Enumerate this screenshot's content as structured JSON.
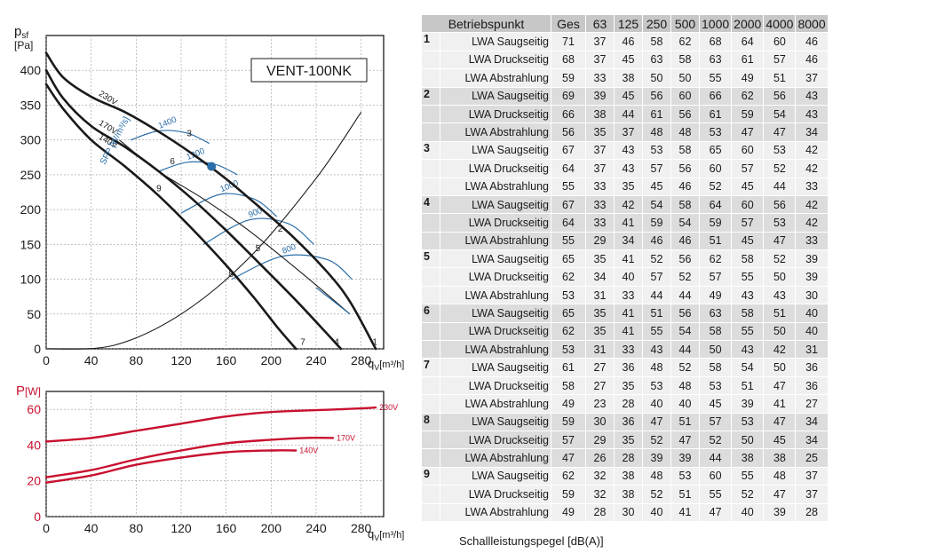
{
  "chart_data": [
    {
      "type": "line",
      "title": "VENT-100NK",
      "ylabel": "psf [Pa]",
      "ylabel_main": "p",
      "ylabel_sub": "sf",
      "ylabel_unit": "[Pa]",
      "xlabel_q": "q",
      "xlabel_sub": "V",
      "xlabel_unit": "[m³/h]",
      "xlim": [
        0,
        300
      ],
      "ylim": [
        0,
        450
      ],
      "xticks": [
        "0",
        "40",
        "80",
        "120",
        "160",
        "200",
        "240",
        "280"
      ],
      "yticks": [
        "0",
        "50",
        "100",
        "150",
        "200",
        "250",
        "300",
        "350",
        "400"
      ],
      "fan_curves": [
        {
          "name": "230V",
          "x": [
            0,
            15,
            40,
            70,
            100,
            130,
            160,
            190,
            220,
            250,
            270,
            293
          ],
          "y": [
            425,
            390,
            362,
            340,
            312,
            280,
            244,
            203,
            160,
            110,
            68,
            0
          ]
        },
        {
          "name": "170V",
          "x": [
            0,
            15,
            40,
            70,
            100,
            130,
            160,
            190,
            220,
            245,
            262
          ],
          "y": [
            400,
            360,
            320,
            290,
            255,
            215,
            170,
            122,
            73,
            30,
            0
          ]
        },
        {
          "name": "140V",
          "x": [
            0,
            15,
            40,
            70,
            100,
            130,
            160,
            185,
            205,
            222
          ],
          "y": [
            380,
            345,
            300,
            262,
            220,
            172,
            120,
            73,
            32,
            0
          ]
        }
      ],
      "system_curves": [
        {
          "x": [
            0,
            60,
            120,
            180,
            240,
            280
          ],
          "y": [
            0,
            5,
            50,
            130,
            245,
            340
          ]
        },
        {
          "x": [
            65,
            100,
            140,
            180,
            230,
            270
          ],
          "y": [
            300,
            255,
            215,
            170,
            105,
            50
          ]
        }
      ],
      "sfp_curves": [
        {
          "label": "1400",
          "x": [
            75,
            100,
            125,
            145
          ],
          "y": [
            300,
            313,
            310,
            295
          ]
        },
        {
          "label": "1200",
          "x": [
            100,
            125,
            150,
            170
          ],
          "y": [
            255,
            268,
            265,
            250
          ]
        },
        {
          "label": "1000",
          "x": [
            120,
            155,
            185,
            205
          ],
          "y": [
            195,
            222,
            215,
            190
          ]
        },
        {
          "label": "900",
          "x": [
            140,
            180,
            215,
            238
          ],
          "y": [
            150,
            185,
            180,
            150
          ]
        },
        {
          "label": "800",
          "x": [
            165,
            210,
            250,
            272
          ],
          "y": [
            100,
            133,
            128,
            100
          ]
        }
      ],
      "sfp_axis_label": "SFP [W/m³/s]",
      "operating_point": {
        "x": 147,
        "y": 262
      },
      "point_labels": [
        {
          "label": "1",
          "x": 290,
          "y": 6
        },
        {
          "label": "2",
          "x": 206,
          "y": 168
        },
        {
          "label": "3",
          "x": 125,
          "y": 305
        },
        {
          "label": "4",
          "x": 256,
          "y": 6
        },
        {
          "label": "5",
          "x": 186,
          "y": 140
        },
        {
          "label": "6",
          "x": 110,
          "y": 265
        },
        {
          "label": "7",
          "x": 226,
          "y": 6
        },
        {
          "label": "8",
          "x": 162,
          "y": 103
        },
        {
          "label": "9",
          "x": 98,
          "y": 226
        }
      ]
    },
    {
      "type": "line",
      "ylabel": "P [W]",
      "ylabel_main": "P",
      "ylabel_unit": "[W]",
      "xlabel_q": "q",
      "xlabel_sub": "V",
      "xlabel_unit": "[m³/h]",
      "xlim": [
        0,
        300
      ],
      "ylim": [
        0,
        70
      ],
      "xticks": [
        "0",
        "40",
        "80",
        "120",
        "160",
        "200",
        "240",
        "280"
      ],
      "yticks": [
        "0",
        "20",
        "40",
        "60"
      ],
      "series": [
        {
          "name": "230V",
          "x": [
            0,
            40,
            80,
            120,
            160,
            200,
            240,
            280,
            293
          ],
          "y": [
            42,
            44,
            48,
            52,
            56,
            58.5,
            59.5,
            60.5,
            61
          ]
        },
        {
          "name": "170V",
          "x": [
            0,
            40,
            80,
            120,
            160,
            200,
            230,
            255
          ],
          "y": [
            22,
            26,
            32,
            37,
            41,
            43,
            44,
            44
          ]
        },
        {
          "name": "140V",
          "x": [
            0,
            40,
            80,
            120,
            160,
            200,
            222
          ],
          "y": [
            19,
            23,
            29,
            33,
            36,
            37,
            37
          ]
        }
      ]
    },
    {
      "type": "table",
      "header": [
        "Betriebspunkt",
        "Ges",
        "63",
        "125",
        "250",
        "500",
        "1000",
        "2000",
        "4000",
        "8000"
      ],
      "rows": [
        {
          "point": "1",
          "label": "LWA Saugseitig",
          "values": [
            "71",
            "37",
            "46",
            "58",
            "62",
            "68",
            "64",
            "60",
            "46"
          ]
        },
        {
          "point": "",
          "label": "LWA Druckseitig",
          "values": [
            "68",
            "37",
            "45",
            "63",
            "58",
            "63",
            "61",
            "57",
            "46"
          ]
        },
        {
          "point": "",
          "label": "LWA Abstrahlung",
          "values": [
            "59",
            "33",
            "38",
            "50",
            "50",
            "55",
            "49",
            "51",
            "37"
          ]
        },
        {
          "point": "2",
          "label": "LWA Saugseitig",
          "values": [
            "69",
            "39",
            "45",
            "56",
            "60",
            "66",
            "62",
            "56",
            "43"
          ]
        },
        {
          "point": "",
          "label": "LWA Druckseitig",
          "values": [
            "66",
            "38",
            "44",
            "61",
            "56",
            "61",
            "59",
            "54",
            "43"
          ]
        },
        {
          "point": "",
          "label": "LWA Abstrahlung",
          "values": [
            "56",
            "35",
            "37",
            "48",
            "48",
            "53",
            "47",
            "47",
            "34"
          ]
        },
        {
          "point": "3",
          "label": "LWA Saugseitig",
          "values": [
            "67",
            "37",
            "43",
            "53",
            "58",
            "65",
            "60",
            "53",
            "42"
          ]
        },
        {
          "point": "",
          "label": "LWA Druckseitig",
          "values": [
            "64",
            "37",
            "43",
            "57",
            "56",
            "60",
            "57",
            "52",
            "42"
          ]
        },
        {
          "point": "",
          "label": "LWA Abstrahlung",
          "values": [
            "55",
            "33",
            "35",
            "45",
            "46",
            "52",
            "45",
            "44",
            "33"
          ]
        },
        {
          "point": "4",
          "label": "LWA Saugseitig",
          "values": [
            "67",
            "33",
            "42",
            "54",
            "58",
            "64",
            "60",
            "56",
            "42"
          ]
        },
        {
          "point": "",
          "label": "LWA Druckseitig",
          "values": [
            "64",
            "33",
            "41",
            "59",
            "54",
            "59",
            "57",
            "53",
            "42"
          ]
        },
        {
          "point": "",
          "label": "LWA Abstrahlung",
          "values": [
            "55",
            "29",
            "34",
            "46",
            "46",
            "51",
            "45",
            "47",
            "33"
          ]
        },
        {
          "point": "5",
          "label": "LWA Saugseitig",
          "values": [
            "65",
            "35",
            "41",
            "52",
            "56",
            "62",
            "58",
            "52",
            "39"
          ]
        },
        {
          "point": "",
          "label": "LWA Druckseitig",
          "values": [
            "62",
            "34",
            "40",
            "57",
            "52",
            "57",
            "55",
            "50",
            "39"
          ]
        },
        {
          "point": "",
          "label": "LWA Abstrahlung",
          "values": [
            "53",
            "31",
            "33",
            "44",
            "44",
            "49",
            "43",
            "43",
            "30"
          ]
        },
        {
          "point": "6",
          "label": "LWA Saugseitig",
          "values": [
            "65",
            "35",
            "41",
            "51",
            "56",
            "63",
            "58",
            "51",
            "40"
          ]
        },
        {
          "point": "",
          "label": "LWA Druckseitig",
          "values": [
            "62",
            "35",
            "41",
            "55",
            "54",
            "58",
            "55",
            "50",
            "40"
          ]
        },
        {
          "point": "",
          "label": "LWA Abstrahlung",
          "values": [
            "53",
            "31",
            "33",
            "43",
            "44",
            "50",
            "43",
            "42",
            "31"
          ]
        },
        {
          "point": "7",
          "label": "LWA Saugseitig",
          "values": [
            "61",
            "27",
            "36",
            "48",
            "52",
            "58",
            "54",
            "50",
            "36"
          ]
        },
        {
          "point": "",
          "label": "LWA Druckseitig",
          "values": [
            "58",
            "27",
            "35",
            "53",
            "48",
            "53",
            "51",
            "47",
            "36"
          ]
        },
        {
          "point": "",
          "label": "LWA Abstrahlung",
          "values": [
            "49",
            "23",
            "28",
            "40",
            "40",
            "45",
            "39",
            "41",
            "27"
          ]
        },
        {
          "point": "8",
          "label": "LWA Saugseitig",
          "values": [
            "59",
            "30",
            "36",
            "47",
            "51",
            "57",
            "53",
            "47",
            "34"
          ]
        },
        {
          "point": "",
          "label": "LWA Druckseitig",
          "values": [
            "57",
            "29",
            "35",
            "52",
            "47",
            "52",
            "50",
            "45",
            "34"
          ]
        },
        {
          "point": "",
          "label": "LWA Abstrahlung",
          "values": [
            "47",
            "26",
            "28",
            "39",
            "39",
            "44",
            "38",
            "38",
            "25"
          ]
        },
        {
          "point": "9",
          "label": "LWA Saugseitig",
          "values": [
            "62",
            "32",
            "38",
            "48",
            "53",
            "60",
            "55",
            "48",
            "37"
          ]
        },
        {
          "point": "",
          "label": "LWA Druckseitig",
          "values": [
            "59",
            "32",
            "38",
            "52",
            "51",
            "55",
            "52",
            "47",
            "37"
          ]
        },
        {
          "point": "",
          "label": "LWA Abstrahlung",
          "values": [
            "49",
            "28",
            "30",
            "40",
            "41",
            "47",
            "40",
            "39",
            "28"
          ]
        }
      ],
      "footnote": "Schallleistungspegel [dB(A)]"
    }
  ],
  "colors": {
    "fan_curve": "#1a1a1a",
    "sfp_curve": "#2b6ea8",
    "power_curve": "#c8102e",
    "operating_point": "#2b6ea8",
    "grid": "#9a9a9a"
  }
}
